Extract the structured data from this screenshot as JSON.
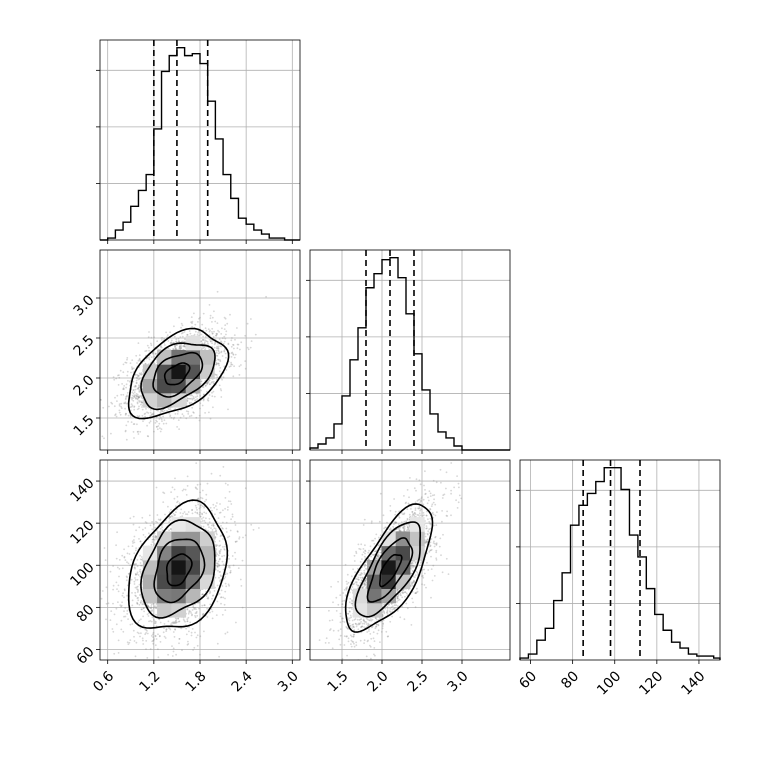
{
  "chart_data": {
    "type": "corner",
    "grid": true,
    "variables": [
      {
        "range": [
          0.5,
          3.1
        ],
        "ticks": [
          0.6,
          1.2,
          1.8,
          2.4,
          3.0
        ],
        "tick_labels": [
          "0.6",
          "1.2",
          "1.8",
          "2.4",
          "3.0"
        ],
        "quantiles": [
          1.2,
          1.5,
          1.9
        ],
        "hist": {
          "edges": [
            0.5,
            0.6,
            0.7,
            0.8,
            0.9,
            1.0,
            1.1,
            1.2,
            1.3,
            1.4,
            1.5,
            1.6,
            1.7,
            1.8,
            1.9,
            2.0,
            2.1,
            2.2,
            2.3,
            2.4,
            2.5,
            2.6,
            2.7,
            2.8,
            2.9,
            3.0,
            3.1
          ],
          "counts": [
            0,
            1,
            5,
            9,
            17,
            25,
            33,
            56,
            85,
            93,
            97,
            93,
            94,
            89,
            70,
            51,
            33,
            21,
            11,
            8,
            5,
            3,
            1,
            1,
            0,
            0
          ]
        }
      },
      {
        "range": [
          1.1,
          3.6
        ],
        "ticks": [
          1.5,
          2.0,
          2.5,
          3.0
        ],
        "tick_labels": [
          "1.5",
          "2.0",
          "2.5",
          "3.0"
        ],
        "quantiles": [
          1.8,
          2.1,
          2.4
        ],
        "hist": {
          "edges": [
            1.1,
            1.2,
            1.3,
            1.4,
            1.5,
            1.6,
            1.7,
            1.8,
            1.9,
            2.0,
            2.1,
            2.2,
            2.3,
            2.4,
            2.5,
            2.6,
            2.7,
            2.8,
            2.9,
            3.0,
            3.1,
            3.2,
            3.3,
            3.4,
            3.5,
            3.6
          ],
          "counts": [
            1,
            3,
            6,
            13,
            27,
            45,
            61,
            81,
            88,
            95,
            96,
            86,
            68,
            48,
            30,
            18,
            9,
            6,
            2,
            0,
            0,
            0,
            0,
            0,
            0
          ]
        }
      },
      {
        "range": [
          55,
          150
        ],
        "ticks": [
          60,
          80,
          100,
          120,
          140
        ],
        "tick_labels": [
          "60",
          "80",
          "100",
          "120",
          "140"
        ],
        "quantiles": [
          85,
          98,
          112
        ],
        "hist": {
          "edges": [
            55,
            59,
            63,
            67,
            71,
            75,
            79,
            83,
            87,
            91,
            95,
            99,
            103,
            107,
            111,
            115,
            119,
            123,
            127,
            131,
            135,
            139,
            143,
            147,
            150
          ],
          "counts": [
            1,
            3,
            10,
            16,
            30,
            44,
            68,
            78,
            84,
            90,
            97,
            97,
            86,
            63,
            52,
            36,
            23,
            15,
            9,
            6,
            3,
            2,
            2,
            1
          ]
        }
      }
    ],
    "panels_2d": [
      {
        "x_var": 0,
        "y_var": 1,
        "mean": [
          1.5,
          2.05
        ],
        "sd": [
          0.32,
          0.27
        ],
        "rho": 0.45,
        "contour_sigmas": [
          0.5,
          1.0,
          1.5,
          2.0
        ]
      },
      {
        "x_var": 0,
        "y_var": 2,
        "mean": [
          1.52,
          98
        ],
        "sd": [
          0.32,
          15
        ],
        "rho": 0.3,
        "contour_sigmas": [
          0.5,
          1.0,
          1.5,
          2.0
        ]
      },
      {
        "x_var": 1,
        "y_var": 2,
        "mean": [
          2.1,
          98
        ],
        "sd": [
          0.27,
          15
        ],
        "rho": 0.7,
        "contour_sigmas": [
          0.5,
          1.0,
          1.5,
          2.0
        ]
      }
    ]
  }
}
